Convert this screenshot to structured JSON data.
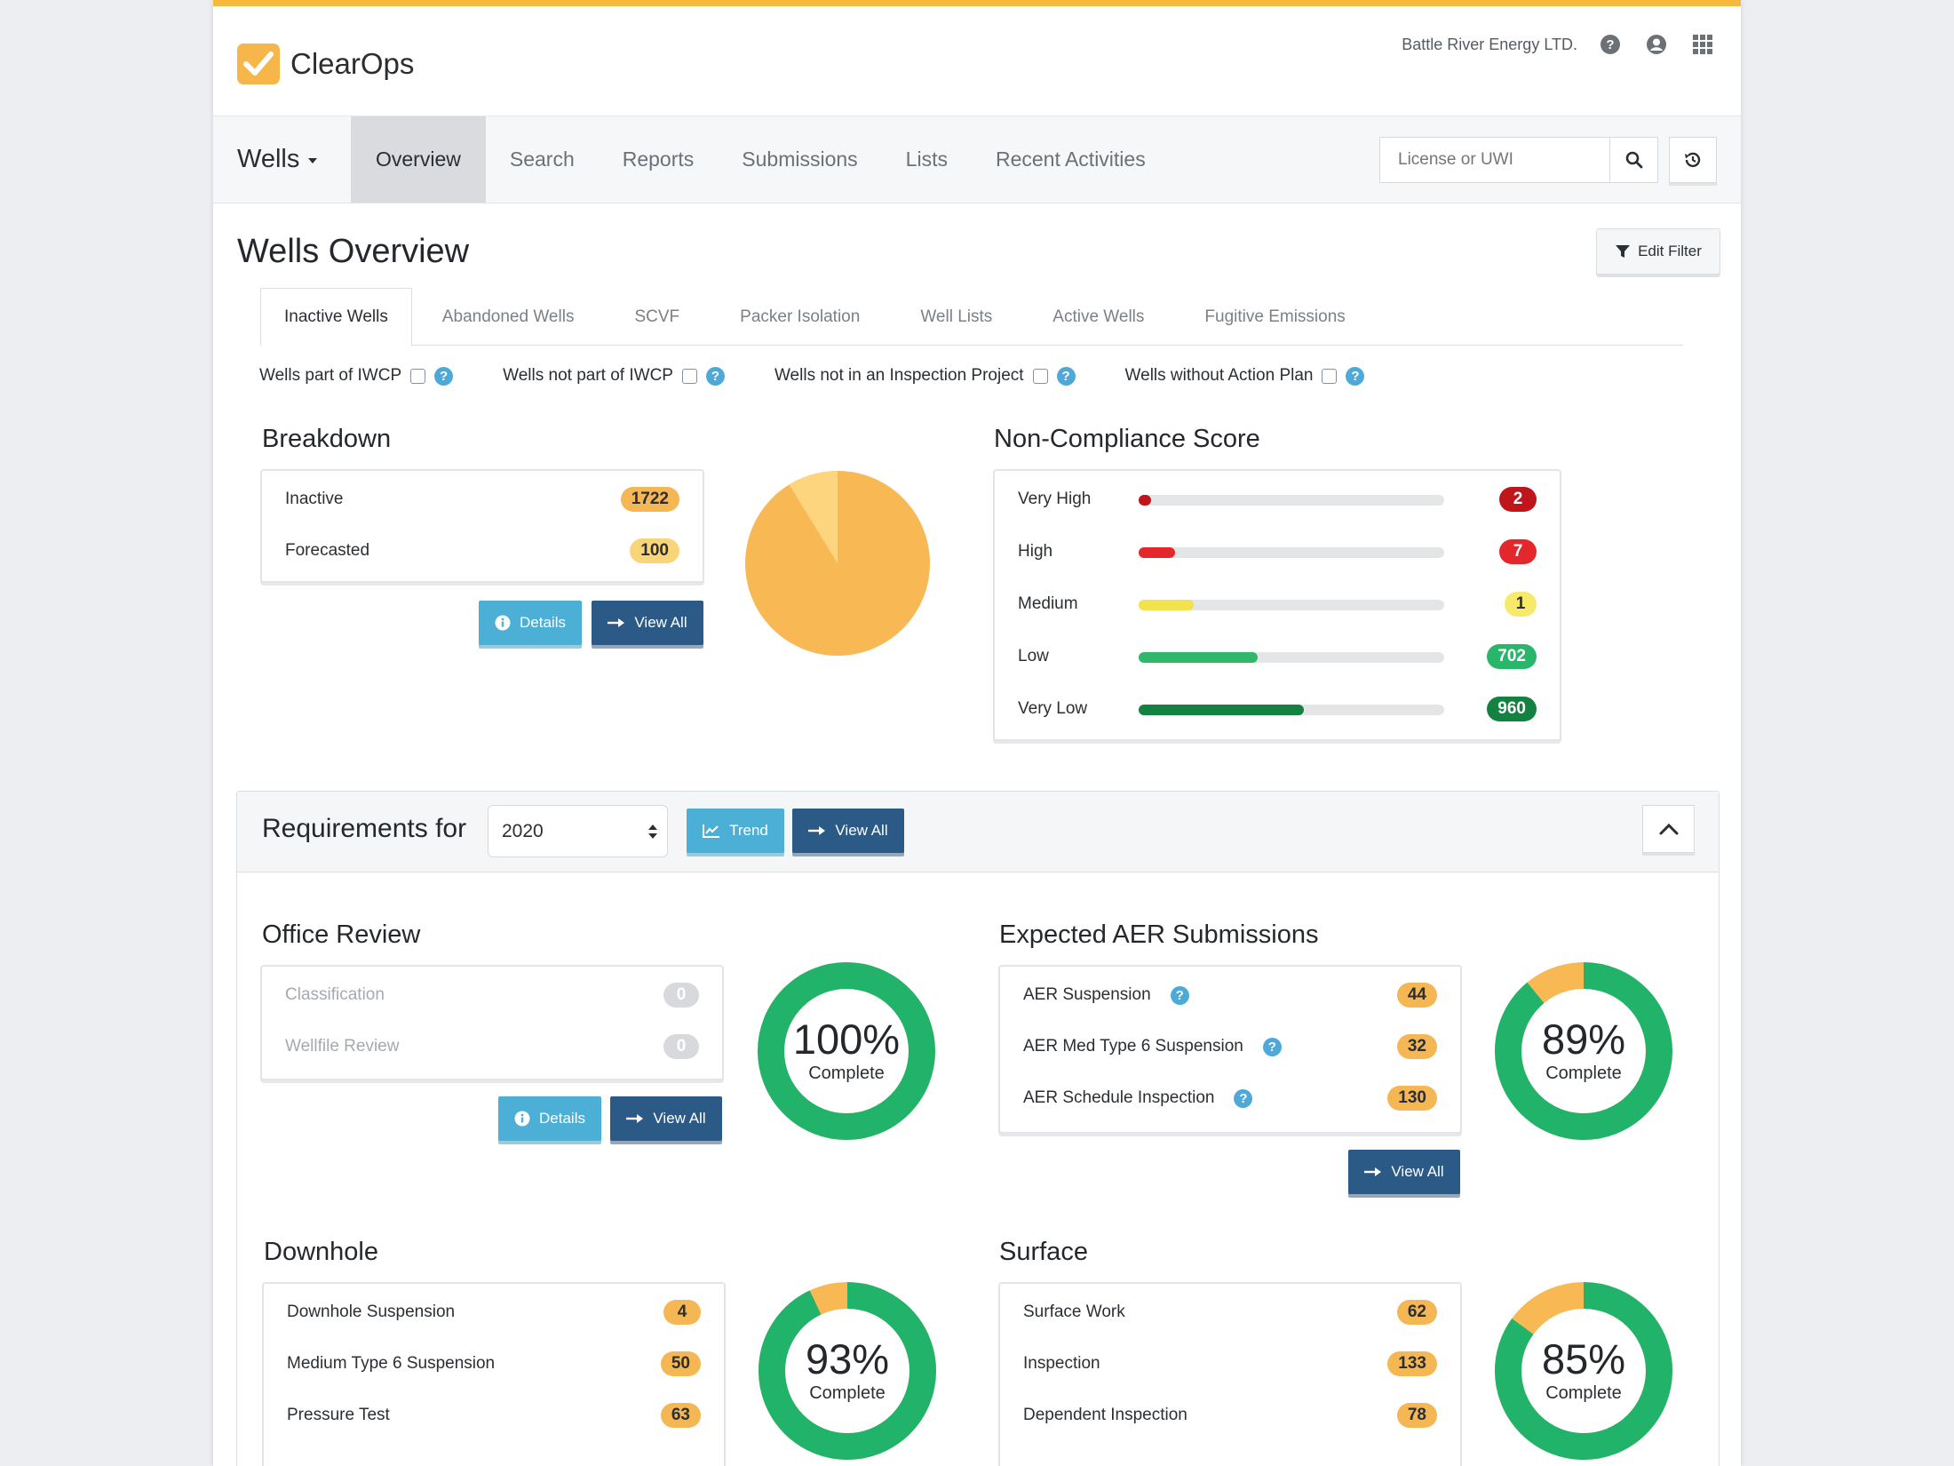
{
  "app": {
    "name": "ClearOps",
    "company": "Battle River Energy LTD."
  },
  "header": {
    "icons": [
      "help-icon",
      "user-icon",
      "apps-grid-icon"
    ]
  },
  "nav": {
    "brand": "Wells",
    "items": [
      "Overview",
      "Search",
      "Reports",
      "Submissions",
      "Lists",
      "Recent Activities"
    ],
    "active": "Overview",
    "search_placeholder": "License or UWI"
  },
  "page": {
    "title": "Wells Overview",
    "edit_filter": "Edit Filter"
  },
  "tabs": [
    "Inactive Wells",
    "Abandoned Wells",
    "SCVF",
    "Packer Isolation",
    "Well Lists",
    "Active Wells",
    "Fugitive Emissions"
  ],
  "filters": [
    "Wells part of IWCP",
    "Wells not part of IWCP",
    "Wells not in an Inspection Project",
    "Wells without Action Plan"
  ],
  "breakdown": {
    "title": "Breakdown",
    "rows": [
      {
        "label": "Inactive",
        "value": "1722"
      },
      {
        "label": "Forecasted",
        "value": "100"
      }
    ],
    "details": "Details",
    "view_all": "View All",
    "pie": {
      "inactive": 1722,
      "forecasted": 100,
      "colors": {
        "inactive": "#f8b853",
        "forecasted": "#fcd57e"
      }
    }
  },
  "noncompliance": {
    "title": "Non-Compliance Score",
    "rows": [
      {
        "label": "Very High",
        "value": "2",
        "fraction": 0.02,
        "color": "#c0161b"
      },
      {
        "label": "High",
        "value": "7",
        "fraction": 0.12,
        "color": "#e3272a"
      },
      {
        "label": "Medium",
        "value": "1",
        "fraction": 0.18,
        "color": "#f2e24b"
      },
      {
        "label": "Low",
        "value": "702",
        "fraction": 0.39,
        "color": "#2fb86c"
      },
      {
        "label": "Very Low",
        "value": "960",
        "fraction": 0.54,
        "color": "#13813f"
      }
    ]
  },
  "requirements": {
    "title": "Requirements for",
    "year": "2020",
    "trend": "Trend",
    "view_all": "View All",
    "office_review": {
      "title": "Office Review",
      "rows": [
        {
          "label": "Classification",
          "value": "0"
        },
        {
          "label": "Wellfile Review",
          "value": "0"
        }
      ],
      "details": "Details",
      "view_all": "View All",
      "percent": "100%",
      "fraction": 1.0,
      "complete": "Complete"
    },
    "aer": {
      "title": "Expected AER Submissions",
      "rows": [
        {
          "label": "AER Suspension",
          "value": "44"
        },
        {
          "label": "AER Med Type 6 Suspension",
          "value": "32"
        },
        {
          "label": "AER Schedule Inspection",
          "value": "130"
        }
      ],
      "view_all": "View All",
      "percent": "89%",
      "fraction": 0.89,
      "complete": "Complete"
    },
    "downhole": {
      "title": "Downhole",
      "rows": [
        {
          "label": "Downhole Suspension",
          "value": "4"
        },
        {
          "label": "Medium Type 6 Suspension",
          "value": "50"
        },
        {
          "label": "Pressure Test",
          "value": "63"
        }
      ],
      "percent": "93%",
      "fraction": 0.93,
      "complete": "Complete"
    },
    "surface": {
      "title": "Surface",
      "rows": [
        {
          "label": "Surface Work",
          "value": "62"
        },
        {
          "label": "Inspection",
          "value": "133"
        },
        {
          "label": "Dependent Inspection",
          "value": "78"
        }
      ],
      "percent": "85%",
      "fraction": 0.85,
      "complete": "Complete"
    }
  },
  "colors": {
    "accent": "#f6b93b",
    "green": "#22b36a",
    "orange": "#f8b853",
    "btn_light": "#4cb0d6",
    "btn_dark": "#2c5a86"
  }
}
